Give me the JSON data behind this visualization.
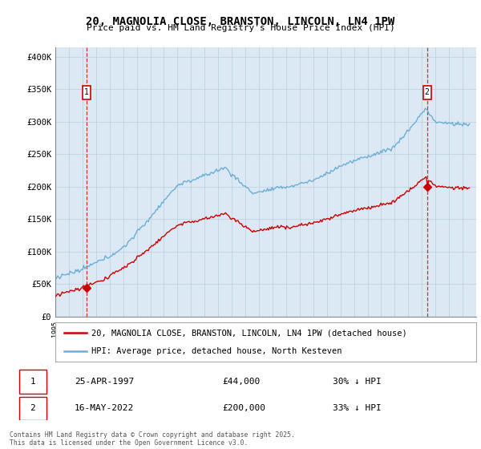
{
  "title": "20, MAGNOLIA CLOSE, BRANSTON, LINCOLN, LN4 1PW",
  "subtitle": "Price paid vs. HM Land Registry's House Price Index (HPI)",
  "ylabel_ticks": [
    "£0",
    "£50K",
    "£100K",
    "£150K",
    "£200K",
    "£250K",
    "£300K",
    "£350K",
    "£400K"
  ],
  "ytick_vals": [
    0,
    50000,
    100000,
    150000,
    200000,
    250000,
    300000,
    350000,
    400000
  ],
  "ylim": [
    0,
    415000
  ],
  "xlim_start": 1995.0,
  "xlim_end": 2026.0,
  "hpi_color": "#6baed6",
  "price_color": "#cc0000",
  "sale1_year": 1997.32,
  "sale1_price": 44000,
  "sale1_label": "1",
  "sale2_year": 2022.38,
  "sale2_price": 200000,
  "sale2_label": "2",
  "marker1_chart_y": 345000,
  "marker2_chart_y": 345000,
  "legend_line1": "20, MAGNOLIA CLOSE, BRANSTON, LINCOLN, LN4 1PW (detached house)",
  "legend_line2": "HPI: Average price, detached house, North Kesteven",
  "table_row1": [
    "1",
    "25-APR-1997",
    "£44,000",
    "30% ↓ HPI"
  ],
  "table_row2": [
    "2",
    "16-MAY-2022",
    "£200,000",
    "33% ↓ HPI"
  ],
  "footnote": "Contains HM Land Registry data © Crown copyright and database right 2025.\nThis data is licensed under the Open Government Licence v3.0.",
  "background_color": "#ffffff",
  "chart_bg_color": "#dce9f5",
  "grid_color": "#b8cfe0"
}
